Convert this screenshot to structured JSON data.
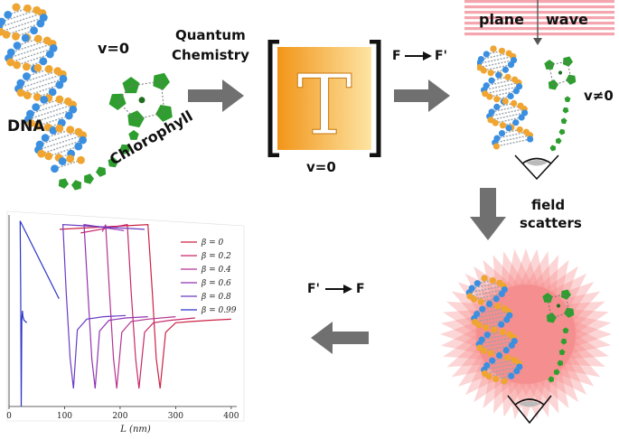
{
  "labels": {
    "dna": "DNA",
    "v_zero_top": "v=0",
    "chlorophyll": "Chlorophyll",
    "quantum": "Quantum",
    "chemistry": "Chemistry",
    "t_matrix": "T",
    "v_zero_mid": "v=0",
    "f_to_fprime_left": "F",
    "f_to_fprime_right": "F'",
    "plane": "plane",
    "wave": "wave",
    "v_nonzero": "v≠0",
    "field": "field",
    "scatters": "scatters",
    "fprime_to_f_left": "F'",
    "fprime_to_f_right": "F"
  },
  "chart_data": {
    "type": "line",
    "xlabel": "L (nm)",
    "xlim": [
      0,
      410
    ],
    "xticks": [
      0,
      100,
      200,
      300,
      400
    ],
    "series": [
      {
        "name": "β = 0",
        "color": "#cc2244",
        "x": [
          250,
          258,
          265,
          272,
          282,
          300,
          330,
          360,
          400
        ],
        "y": [
          0.92,
          0.35,
          -0.2,
          -0.45,
          0.02,
          0.1,
          0.11,
          0.12,
          0.13
        ]
      },
      {
        "name": "β = 0.2",
        "color": "#c8286a",
        "x": [
          213,
          220,
          228,
          234,
          244,
          260,
          290,
          335
        ],
        "y": [
          0.92,
          0.35,
          -0.2,
          -0.45,
          0.02,
          0.1,
          0.12,
          0.14
        ]
      },
      {
        "name": "β = 0.4",
        "color": "#b53390",
        "x": [
          174,
          181,
          188,
          194,
          203,
          220,
          250,
          300
        ],
        "y": [
          0.92,
          0.35,
          -0.2,
          -0.45,
          0.02,
          0.11,
          0.13,
          0.15
        ]
      },
      {
        "name": "β = 0.6",
        "color": "#8e34b0",
        "x": [
          135,
          142,
          149,
          155,
          163,
          180,
          210,
          250
        ],
        "y": [
          0.92,
          0.35,
          -0.2,
          -0.45,
          0.03,
          0.12,
          0.14,
          0.15
        ]
      },
      {
        "name": "β = 0.8",
        "color": "#6a3bc4",
        "x": [
          97,
          103,
          110,
          116,
          123,
          140,
          170,
          210
        ],
        "y": [
          0.92,
          0.35,
          -0.2,
          -0.45,
          0.04,
          0.13,
          0.15,
          0.16
        ]
      },
      {
        "name": "β = 0.99",
        "color": "#2b33c9",
        "x": [
          20,
          21,
          22,
          23,
          24,
          25,
          27,
          32
        ],
        "y": [
          0.95,
          0.38,
          -0.6,
          0.12,
          0.2,
          0.15,
          0.12,
          0.1
        ]
      }
    ],
    "series_start": [
      {
        "x": 91,
        "y": 0.88
      },
      {
        "x": 129,
        "y": 0.85
      },
      {
        "x": 168,
        "y": 0.86
      },
      {
        "x": 207,
        "y": 0.87
      },
      {
        "x": 244,
        "y": 0.88
      },
      {
        "x": 90,
        "y": 0.3
      }
    ]
  },
  "colors": {
    "arrow": "#707070",
    "matrix_light": "#fde4a3",
    "matrix_dark": "#f29518",
    "wave_stripe": "#f4a5ae",
    "chlorophyll_green": "#2e9e2e",
    "dna_blue": "#3b8fe0",
    "dna_orange": "#f0a530"
  }
}
